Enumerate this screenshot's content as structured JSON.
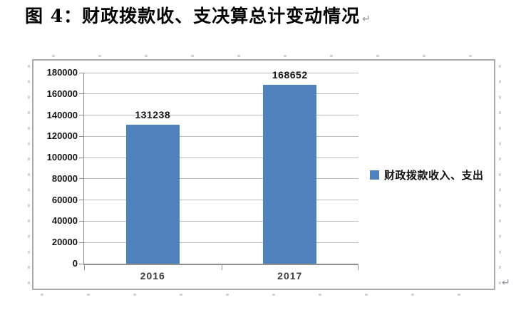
{
  "document": {
    "title": "图 4：财政拨款收、支决算总计变动情况",
    "paragraph_mark": "↵"
  },
  "chart_data": {
    "type": "bar",
    "title": "图 4：财政拨款收、支决算总计变动情况",
    "categories": [
      "2016",
      "2017"
    ],
    "series": [
      {
        "name": "财政拨款收入、支出",
        "values": [
          131238,
          168652
        ]
      }
    ],
    "data_labels": [
      "131238",
      "168652"
    ],
    "xlabel": "",
    "ylabel": "",
    "y_axis": {
      "min": 0,
      "max": 180000,
      "step": 20000,
      "tick_labels": [
        "0",
        "20000",
        "40000",
        "60000",
        "80000",
        "100000",
        "120000",
        "140000",
        "160000",
        "180000"
      ]
    },
    "grid": true,
    "legend": {
      "position": "middle-right",
      "label": "财政拨款收入、支出"
    },
    "colors": {
      "bar": "#4F81BD",
      "gridline": "#BDBDBD",
      "axis": "#8F8F8F",
      "frame_border": "#ABABAB",
      "text": "#111111"
    }
  }
}
